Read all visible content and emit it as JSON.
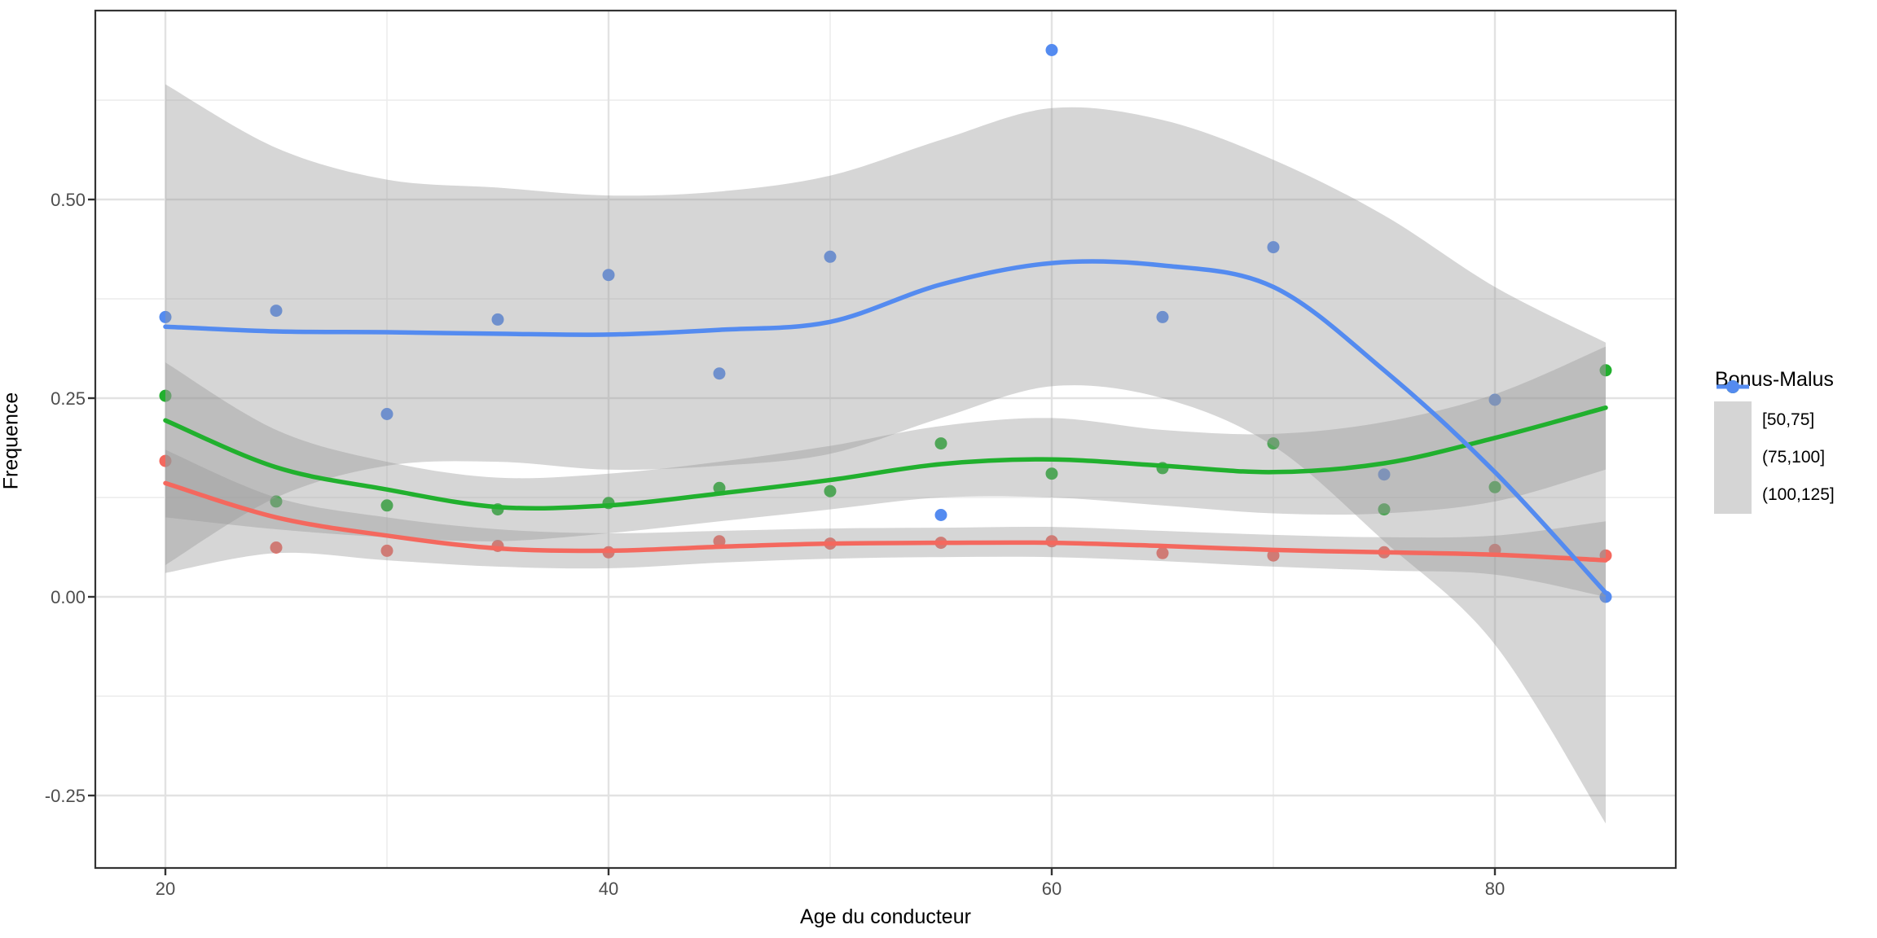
{
  "chart_data": {
    "type": "scatter",
    "subtype": "scatter-with-loess-smooth-and-confidence-ribbons",
    "title": "",
    "xlabel": "Age du conducteur",
    "ylabel": "Frequence",
    "xlim": [
      16.8,
      88.3
    ],
    "ylim": [
      -0.34,
      0.74
    ],
    "grid": "on",
    "legend_position": "right",
    "x_major_ticks": [
      20,
      40,
      60,
      80
    ],
    "x_major_tick_labels": [
      "20",
      "40",
      "60",
      "80"
    ],
    "x_minor_ticks": [
      30,
      50,
      70
    ],
    "y_major_ticks": [
      0.5,
      0.25,
      0.0,
      -0.25
    ],
    "y_major_tick_labels": [
      "0.50",
      "0.25",
      "0.00",
      "-0.25"
    ],
    "y_minor_ticks": [
      0.625,
      0.375,
      0.125,
      -0.125
    ],
    "ages": [
      20,
      25,
      30,
      35,
      40,
      45,
      50,
      55,
      60,
      65,
      70,
      75,
      80,
      85
    ],
    "ribbon_fill": "#999999",
    "ribbon_opacity": 0.4,
    "series": [
      {
        "name": "[50,75]",
        "color": "#f4685e",
        "points": [
          0.171,
          0.062,
          0.058,
          0.064,
          0.056,
          0.07,
          0.067,
          0.068,
          0.07,
          0.055,
          0.052,
          0.056,
          0.059,
          0.052
        ],
        "smooth": [
          0.143,
          0.1,
          0.077,
          0.061,
          0.058,
          0.063,
          0.067,
          0.068,
          0.068,
          0.064,
          0.059,
          0.056,
          0.053,
          0.046
        ],
        "ribbon_upper": [
          0.185,
          0.125,
          0.1,
          0.085,
          0.08,
          0.083,
          0.086,
          0.087,
          0.088,
          0.083,
          0.078,
          0.075,
          0.077,
          0.095
        ],
        "ribbon_lower": [
          0.03,
          0.055,
          0.046,
          0.038,
          0.036,
          0.043,
          0.048,
          0.05,
          0.05,
          0.045,
          0.038,
          0.033,
          0.028,
          0.0
        ]
      },
      {
        "name": "(75,100]",
        "color": "#21b02e",
        "points": [
          0.253,
          0.12,
          0.115,
          0.11,
          0.118,
          0.137,
          0.133,
          0.193,
          0.155,
          0.162,
          0.193,
          0.11,
          0.138,
          0.285
        ],
        "smooth": [
          0.222,
          0.163,
          0.135,
          0.113,
          0.115,
          0.13,
          0.147,
          0.167,
          0.173,
          0.165,
          0.157,
          0.168,
          0.2,
          0.238
        ],
        "ribbon_upper": [
          0.295,
          0.21,
          0.17,
          0.15,
          0.155,
          0.17,
          0.19,
          0.215,
          0.225,
          0.21,
          0.205,
          0.22,
          0.255,
          0.315
        ],
        "ribbon_lower": [
          0.1,
          0.085,
          0.075,
          0.07,
          0.08,
          0.095,
          0.11,
          0.125,
          0.125,
          0.115,
          0.105,
          0.105,
          0.12,
          0.16
        ]
      },
      {
        "name": "(100,125]",
        "color": "#548bf0",
        "points": [
          0.352,
          0.36,
          0.23,
          0.349,
          0.405,
          0.281,
          0.428,
          0.103,
          0.688,
          0.352,
          0.44,
          0.154,
          0.248,
          0.0
        ],
        "smooth": [
          0.34,
          0.334,
          0.333,
          0.331,
          0.33,
          0.336,
          0.346,
          0.393,
          0.42,
          0.417,
          0.39,
          0.285,
          0.157,
          0.005
        ],
        "ribbon_upper": [
          0.645,
          0.565,
          0.525,
          0.515,
          0.505,
          0.51,
          0.53,
          0.575,
          0.615,
          0.6,
          0.55,
          0.48,
          0.39,
          0.32
        ],
        "ribbon_lower": [
          0.04,
          0.125,
          0.165,
          0.17,
          0.16,
          0.165,
          0.18,
          0.225,
          0.265,
          0.25,
          0.19,
          0.07,
          -0.06,
          -0.285
        ]
      }
    ]
  },
  "legend": {
    "title": "Bonus-Malus",
    "items": [
      {
        "label": "[50,75]"
      },
      {
        "label": "(75,100]"
      },
      {
        "label": "(100,125]"
      }
    ]
  }
}
